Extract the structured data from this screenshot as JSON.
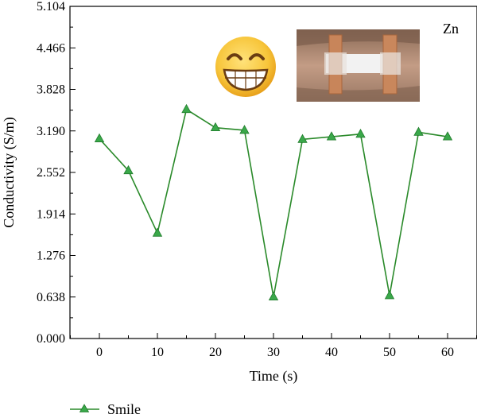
{
  "chart_data": {
    "type": "line",
    "xlabel": "Time (s)",
    "ylabel": "Conductivity (S/m)",
    "annotation": "Zn",
    "x": [
      0,
      5,
      10,
      15,
      20,
      25,
      30,
      35,
      40,
      45,
      50,
      55,
      60
    ],
    "xticks": [
      "0",
      "10",
      "20",
      "30",
      "40",
      "50",
      "60"
    ],
    "yticks": [
      "0.000",
      "0.638",
      "1.276",
      "1.914",
      "2.552",
      "3.190",
      "3.828",
      "4.466",
      "5.104"
    ],
    "xlim": [
      -5,
      65
    ],
    "ylim": [
      0,
      5.104
    ],
    "series": [
      {
        "name": "Smile",
        "values": [
          3.07,
          2.58,
          1.62,
          3.52,
          3.24,
          3.2,
          0.64,
          3.06,
          3.1,
          3.14,
          0.66,
          3.17,
          3.1
        ]
      }
    ],
    "legend_position": "bottom-left",
    "colors": {
      "line": "#2a8a2a",
      "marker": "#3aa84a",
      "frame": "#000000"
    },
    "insets": [
      {
        "kind": "emoji",
        "icon": "grinning-face-emoji"
      },
      {
        "kind": "photo",
        "icon": "wrist-sensor-photo"
      }
    ]
  }
}
